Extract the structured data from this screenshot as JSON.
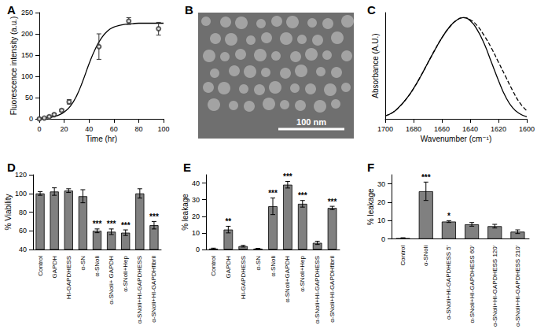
{
  "chart_data": [
    {
      "type": "line",
      "title": "A",
      "x_label": "Time (hr)",
      "y_label": "Fluorescence intensity (a.u.)",
      "xlim": [
        0,
        100
      ],
      "xticks": [
        0,
        20,
        40,
        60,
        80,
        100
      ],
      "ylim": [
        0,
        250
      ],
      "yticks": [
        0,
        50,
        100,
        150,
        200,
        250
      ],
      "grid": false,
      "series": [
        {
          "type": "scatter",
          "marker": "circle",
          "color": "#333333",
          "x": [
            0,
            4,
            8,
            12,
            18,
            24,
            48,
            72,
            96
          ],
          "values": [
            0,
            2,
            5,
            10,
            20,
            40,
            170,
            230,
            212
          ],
          "errors": [
            1,
            1,
            2,
            2,
            3,
            5,
            30,
            8,
            15
          ]
        },
        {
          "type": "line",
          "line_style": "solid",
          "color": "#000000",
          "x": [
            0,
            5,
            10,
            15,
            20,
            25,
            30,
            35,
            40,
            45,
            50,
            55,
            60,
            65,
            70,
            75,
            80,
            85,
            90,
            95,
            100
          ],
          "values": [
            1,
            2,
            4,
            8,
            16,
            30,
            54,
            89,
            129,
            164,
            190,
            207,
            216,
            220,
            223,
            224,
            225,
            225,
            225,
            225,
            225
          ]
        }
      ]
    },
    {
      "type": "image",
      "title": "B",
      "annotations": [
        "100 nm"
      ]
    },
    {
      "type": "line",
      "title": "C",
      "x_label": "Wavenumber (cm⁻¹)",
      "y_label": "Absorbance (A.U.)",
      "xlim": [
        1700,
        1600
      ],
      "xticks": [
        1700,
        1680,
        1660,
        1640,
        1620,
        1600
      ],
      "ylim": [
        0,
        1.05
      ],
      "tick_labels": "x",
      "grid": false,
      "series": [
        {
          "type": "line",
          "line_style": "solid",
          "color": "#000000",
          "x": [
            1700,
            1695,
            1690,
            1685,
            1680,
            1675,
            1670,
            1665,
            1660,
            1655,
            1650,
            1645,
            1640,
            1635,
            1630,
            1625,
            1620,
            1615,
            1610,
            1605,
            1600
          ],
          "values": [
            0.03,
            0.06,
            0.12,
            0.2,
            0.3,
            0.42,
            0.55,
            0.68,
            0.8,
            0.9,
            0.97,
            1.0,
            0.97,
            0.88,
            0.74,
            0.56,
            0.38,
            0.22,
            0.11,
            0.05,
            0.02
          ]
        },
        {
          "type": "line",
          "line_style": "dashed",
          "color": "#000000",
          "x": [
            1700,
            1695,
            1690,
            1685,
            1680,
            1675,
            1670,
            1665,
            1660,
            1655,
            1650,
            1645,
            1640,
            1635,
            1630,
            1625,
            1620,
            1615,
            1610,
            1605,
            1600
          ],
          "values": [
            0.03,
            0.06,
            0.12,
            0.2,
            0.3,
            0.42,
            0.55,
            0.68,
            0.8,
            0.9,
            0.97,
            1.0,
            0.98,
            0.92,
            0.82,
            0.7,
            0.56,
            0.42,
            0.28,
            0.16,
            0.08
          ]
        }
      ]
    },
    {
      "type": "bar",
      "title": "D",
      "y_label": "% Viability",
      "color": "#808080",
      "categories": [
        "Control",
        "GAPDH",
        "HI-GAPDHESS",
        "α-SN",
        "α-SNoli",
        "α-SNoli+ GAPDH",
        "α-SNoli+Hep",
        "α-SNoli+HI-GAPDHESS",
        "α-SNoli+HI-GAPDHfibril"
      ],
      "values": [
        100,
        102,
        103,
        97,
        60,
        59,
        58,
        100,
        66
      ],
      "errors": [
        2,
        4,
        2,
        7,
        2,
        3,
        3,
        5,
        4
      ],
      "annotations": [
        null,
        null,
        null,
        null,
        "***",
        "***",
        "***",
        null,
        "***"
      ],
      "ylim": [
        40,
        120
      ],
      "yticks": [
        40,
        60,
        80,
        100,
        120
      ],
      "grid": false
    },
    {
      "type": "bar",
      "title": "E",
      "y_label": "% leakage",
      "color": "#808080",
      "categories": [
        "Control",
        "GAPDH",
        "HI-GAPDHESS",
        "α-SN",
        "α-SNoli",
        "α-SNoli+GAPDH",
        "α-SNoli+Hep",
        "α-SNoli+HI-GAPDHESS",
        "α-SNoli+HI-GAPDHfibril"
      ],
      "values": [
        0.5,
        12,
        2,
        0.5,
        26,
        39,
        27.5,
        4,
        25
      ],
      "errors": [
        0.3,
        2,
        0.5,
        0.2,
        5,
        2,
        2,
        1,
        1
      ],
      "annotations": [
        null,
        "**",
        null,
        null,
        "***",
        "***",
        "***",
        null,
        "***"
      ],
      "ylim": [
        0,
        45
      ],
      "yticks": [
        0,
        10,
        20,
        30,
        40
      ],
      "grid": false
    },
    {
      "type": "bar",
      "title": "F",
      "y_label": "% leakage",
      "color": "#808080",
      "categories": [
        "Control",
        "α-SNoli",
        "α-SNoli+HI-GAPDHESS 5'",
        "α-SNoli+HI-GAPDHESS 60'",
        "α-SNoli+HI-GAPDHESS 120'",
        "α-SNoli+HI-GAPDHESS 210'"
      ],
      "values": [
        0.5,
        26,
        9.5,
        8,
        7,
        4
      ],
      "errors": [
        0.2,
        5,
        0.5,
        1,
        1,
        1
      ],
      "annotations": [
        null,
        "***",
        "*",
        null,
        null,
        null
      ],
      "ylim": [
        0,
        35
      ],
      "yticks": [
        0,
        10,
        20,
        30
      ],
      "grid": false
    }
  ]
}
